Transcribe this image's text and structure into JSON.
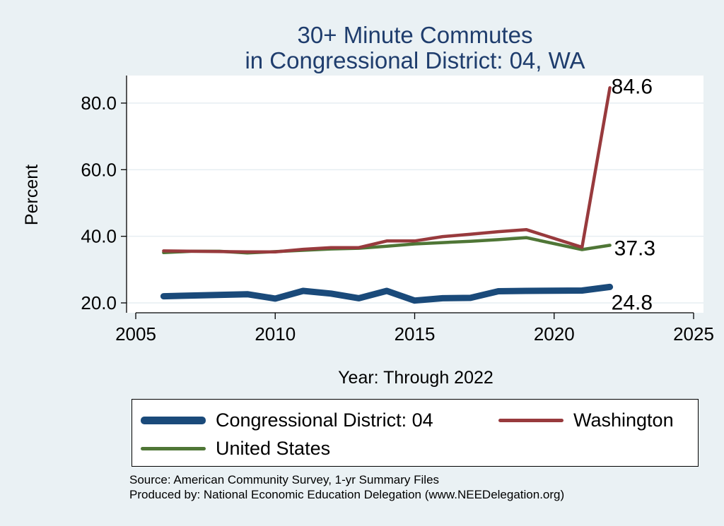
{
  "chart_data": {
    "type": "line",
    "title": [
      "30+ Minute Commutes",
      "in Congressional District:  04, WA"
    ],
    "xlabel": "Year: Through 2022",
    "ylabel": "Percent",
    "xlim": [
      2005,
      2025
    ],
    "ylim": [
      18,
      88
    ],
    "xticks": [
      2005,
      2010,
      2015,
      2020,
      2025
    ],
    "xtick_labels": [
      "2005",
      "2010",
      "2015",
      "2020",
      "2025"
    ],
    "yticks": [
      20,
      40,
      60,
      80
    ],
    "ytick_labels": [
      "20.0",
      "40.0",
      "60.0",
      "80.0"
    ],
    "grid": true,
    "legend_position": "bottom",
    "series": [
      {
        "name": "Congressional District:  04",
        "color": "#1a4a7a",
        "x": [
          2006,
          2009,
          2010,
          2011,
          2012,
          2013,
          2014,
          2015,
          2016,
          2017,
          2018,
          2019,
          2021,
          2022
        ],
        "values": [
          22.0,
          22.6,
          21.3,
          23.6,
          22.8,
          21.4,
          23.6,
          20.7,
          21.4,
          21.5,
          23.5,
          23.6,
          23.7,
          24.8
        ],
        "end_label": "24.8"
      },
      {
        "name": "Washington",
        "color": "#983a3d",
        "x": [
          2006,
          2009,
          2010,
          2011,
          2012,
          2013,
          2014,
          2015,
          2016,
          2017,
          2018,
          2019,
          2021,
          2022
        ],
        "values": [
          35.6,
          35.3,
          35.3,
          36.1,
          36.6,
          36.6,
          38.6,
          38.6,
          39.9,
          40.6,
          41.4,
          42.0,
          36.7,
          84.6
        ],
        "end_label": "84.6"
      },
      {
        "name": "United States",
        "color": "#4f7636",
        "x": [
          2006,
          2007,
          2008,
          2009,
          2010,
          2011,
          2012,
          2013,
          2014,
          2015,
          2016,
          2017,
          2018,
          2019,
          2021,
          2022
        ],
        "values": [
          35.1,
          35.5,
          35.5,
          35.0,
          35.4,
          35.8,
          36.2,
          36.4,
          37.0,
          37.7,
          38.1,
          38.5,
          39.0,
          39.6,
          36.0,
          37.3
        ],
        "end_label": "37.3"
      }
    ]
  },
  "legend": {
    "items": [
      {
        "label": "Congressional District:  04",
        "color": "#1a4a7a"
      },
      {
        "label": "Washington",
        "color": "#983a3d"
      },
      {
        "label": "United States",
        "color": "#4f7636"
      }
    ]
  },
  "notes": {
    "source": "Source: American Community Survey, 1-yr Summary Files",
    "produced_by": "Produced by: National Economic Education Delegation (www.NEEDelegation.org)"
  }
}
